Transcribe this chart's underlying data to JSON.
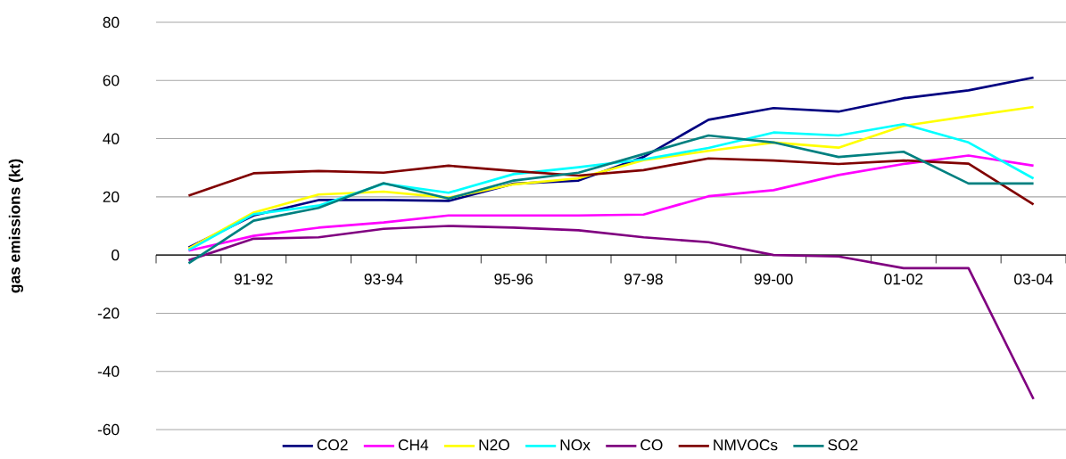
{
  "chart_data": {
    "type": "line",
    "ylabel": "gas emissions (kt)",
    "categories": [
      null,
      "91-92",
      null,
      "93-94",
      null,
      "95-96",
      null,
      "97-98",
      null,
      "99-00",
      null,
      "01-02",
      null,
      "03-04"
    ],
    "ylim": [
      -60,
      80
    ],
    "yticks": [
      -60,
      -40,
      -20,
      0,
      20,
      40,
      60,
      80
    ],
    "grid": "y",
    "legend": "bottom",
    "series": [
      {
        "name": "CO2",
        "color": "#000080",
        "values": [
          2.6,
          13.6,
          18.9,
          18.9,
          18.6,
          24.5,
          25.6,
          33.7,
          46.5,
          50.5,
          49.3,
          53.9,
          56.6,
          61
        ]
      },
      {
        "name": "CH4",
        "color": "#ff00ff",
        "values": [
          1.5,
          6.6,
          9.4,
          11.2,
          13.6,
          13.6,
          13.6,
          13.9,
          20.2,
          22.3,
          27.5,
          31.3,
          34.2,
          30.7
        ]
      },
      {
        "name": "N2O",
        "color": "#ffff00",
        "values": [
          2.2,
          14.6,
          20.8,
          21.8,
          19.7,
          24.3,
          26.4,
          32.6,
          35.8,
          38.7,
          36.9,
          44.4,
          47.7,
          50.9
        ]
      },
      {
        "name": "NOx",
        "color": "#00ffff",
        "values": [
          1.7,
          14,
          17,
          24.5,
          21.4,
          27.8,
          30.2,
          32.9,
          36.8,
          42.1,
          41.1,
          45,
          38.7,
          26.3
        ]
      },
      {
        "name": "CO",
        "color": "#800080",
        "values": [
          -1.8,
          5.6,
          6.1,
          9,
          10,
          9.4,
          8.5,
          6.1,
          4.4,
          0,
          -0.5,
          -4.5,
          -4.5,
          -49.5
        ]
      },
      {
        "name": "NMVOCs",
        "color": "#800000",
        "values": [
          20.4,
          28.1,
          28.9,
          28.3,
          30.7,
          28.9,
          27.3,
          29.2,
          33.2,
          32.5,
          31.3,
          32.5,
          31.4,
          17.4
        ]
      },
      {
        "name": "SO2",
        "color": "#008080",
        "values": [
          -2.8,
          11.8,
          16.2,
          24.7,
          19.4,
          25.6,
          28.3,
          34.7,
          41.1,
          38.7,
          33.7,
          35.5,
          24.6,
          24.6
        ]
      }
    ]
  }
}
